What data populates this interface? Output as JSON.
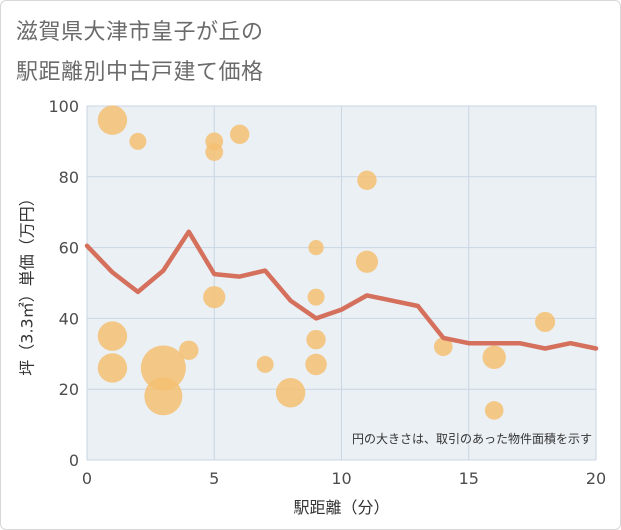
{
  "title": [
    "滋賀県大津市皇子が丘の",
    "駅距離別中古戸建て価格"
  ],
  "colors": {
    "bubble": "#f5c071",
    "line": "#d4705c",
    "grid": "#c9d6e3",
    "plot_bg": "#ebf0f5"
  },
  "chart_data": {
    "type": "scatter",
    "xlabel": "駅距離（分）",
    "ylabel": "坪（3.3㎡）単価（万円）",
    "note": "円の大きさは、取引のあった物件面積を示す",
    "xlim": [
      0,
      20
    ],
    "ylim": [
      0,
      100
    ],
    "xticks": [
      0,
      5,
      10,
      15,
      20
    ],
    "yticks": [
      0,
      20,
      40,
      60,
      80,
      100
    ],
    "grid": true,
    "points": [
      {
        "x": 1,
        "y": 96,
        "size": 3
      },
      {
        "x": 1,
        "y": 35,
        "size": 3
      },
      {
        "x": 1,
        "y": 26,
        "size": 3
      },
      {
        "x": 2,
        "y": 90,
        "size": 1
      },
      {
        "x": 3,
        "y": 26,
        "size": 7
      },
      {
        "x": 3,
        "y": 18,
        "size": 5
      },
      {
        "x": 4,
        "y": 31,
        "size": 1.3
      },
      {
        "x": 5,
        "y": 90,
        "size": 1.1
      },
      {
        "x": 5,
        "y": 87,
        "size": 1.1
      },
      {
        "x": 5,
        "y": 46,
        "size": 1.7
      },
      {
        "x": 6,
        "y": 92,
        "size": 1.3
      },
      {
        "x": 7,
        "y": 27,
        "size": 1
      },
      {
        "x": 8,
        "y": 19,
        "size": 3
      },
      {
        "x": 9,
        "y": 60,
        "size": 0.8
      },
      {
        "x": 9,
        "y": 46,
        "size": 1
      },
      {
        "x": 9,
        "y": 34,
        "size": 1.3
      },
      {
        "x": 9,
        "y": 27,
        "size": 1.6
      },
      {
        "x": 11,
        "y": 79,
        "size": 1.3
      },
      {
        "x": 11,
        "y": 56,
        "size": 1.7
      },
      {
        "x": 14,
        "y": 32,
        "size": 1.2
      },
      {
        "x": 16,
        "y": 29,
        "size": 1.9
      },
      {
        "x": 16,
        "y": 14,
        "size": 1.2
      },
      {
        "x": 18,
        "y": 39,
        "size": 1.4
      }
    ],
    "series": [
      {
        "type": "line",
        "x": [
          0,
          1,
          2,
          3,
          4,
          5,
          6,
          7,
          8,
          9,
          10,
          11,
          12,
          13,
          14,
          15,
          16,
          17,
          18,
          19,
          20
        ],
        "values": [
          60.5,
          53,
          47.5,
          53.5,
          64.5,
          52.5,
          51.8,
          53.5,
          45,
          40,
          42.5,
          46.5,
          45,
          43.5,
          34.5,
          33,
          33,
          33,
          31.5,
          33,
          31.5
        ]
      }
    ]
  }
}
